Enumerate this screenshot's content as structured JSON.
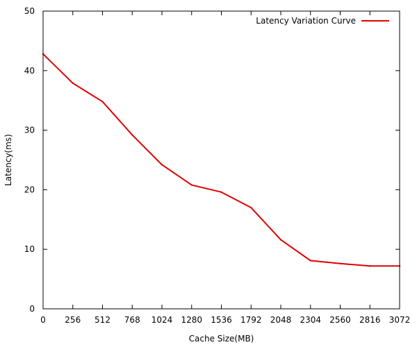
{
  "chart_data": {
    "type": "line",
    "title": "",
    "xlabel": "Cache Size(MB)",
    "ylabel": "Latency(ms)",
    "xlim": [
      0,
      3072
    ],
    "ylim": [
      0,
      50
    ],
    "x_ticks": [
      "0",
      "256",
      "512",
      "768",
      "1024",
      "1280",
      "1536",
      "1792",
      "2048",
      "2304",
      "2560",
      "2816",
      "3072"
    ],
    "y_ticks": [
      "0",
      "10",
      "20",
      "30",
      "40",
      "50"
    ],
    "grid": false,
    "legend_position": "top-right",
    "series": [
      {
        "name": "Latency Variation Curve",
        "color": "#e00000",
        "x": [
          0,
          256,
          512,
          768,
          1024,
          1280,
          1536,
          1792,
          2048,
          2304,
          2560,
          2816,
          3072
        ],
        "y": [
          42.8,
          37.9,
          34.8,
          29.2,
          24.2,
          20.8,
          19.6,
          17.0,
          11.6,
          8.1,
          7.6,
          7.2,
          7.2
        ]
      }
    ]
  }
}
